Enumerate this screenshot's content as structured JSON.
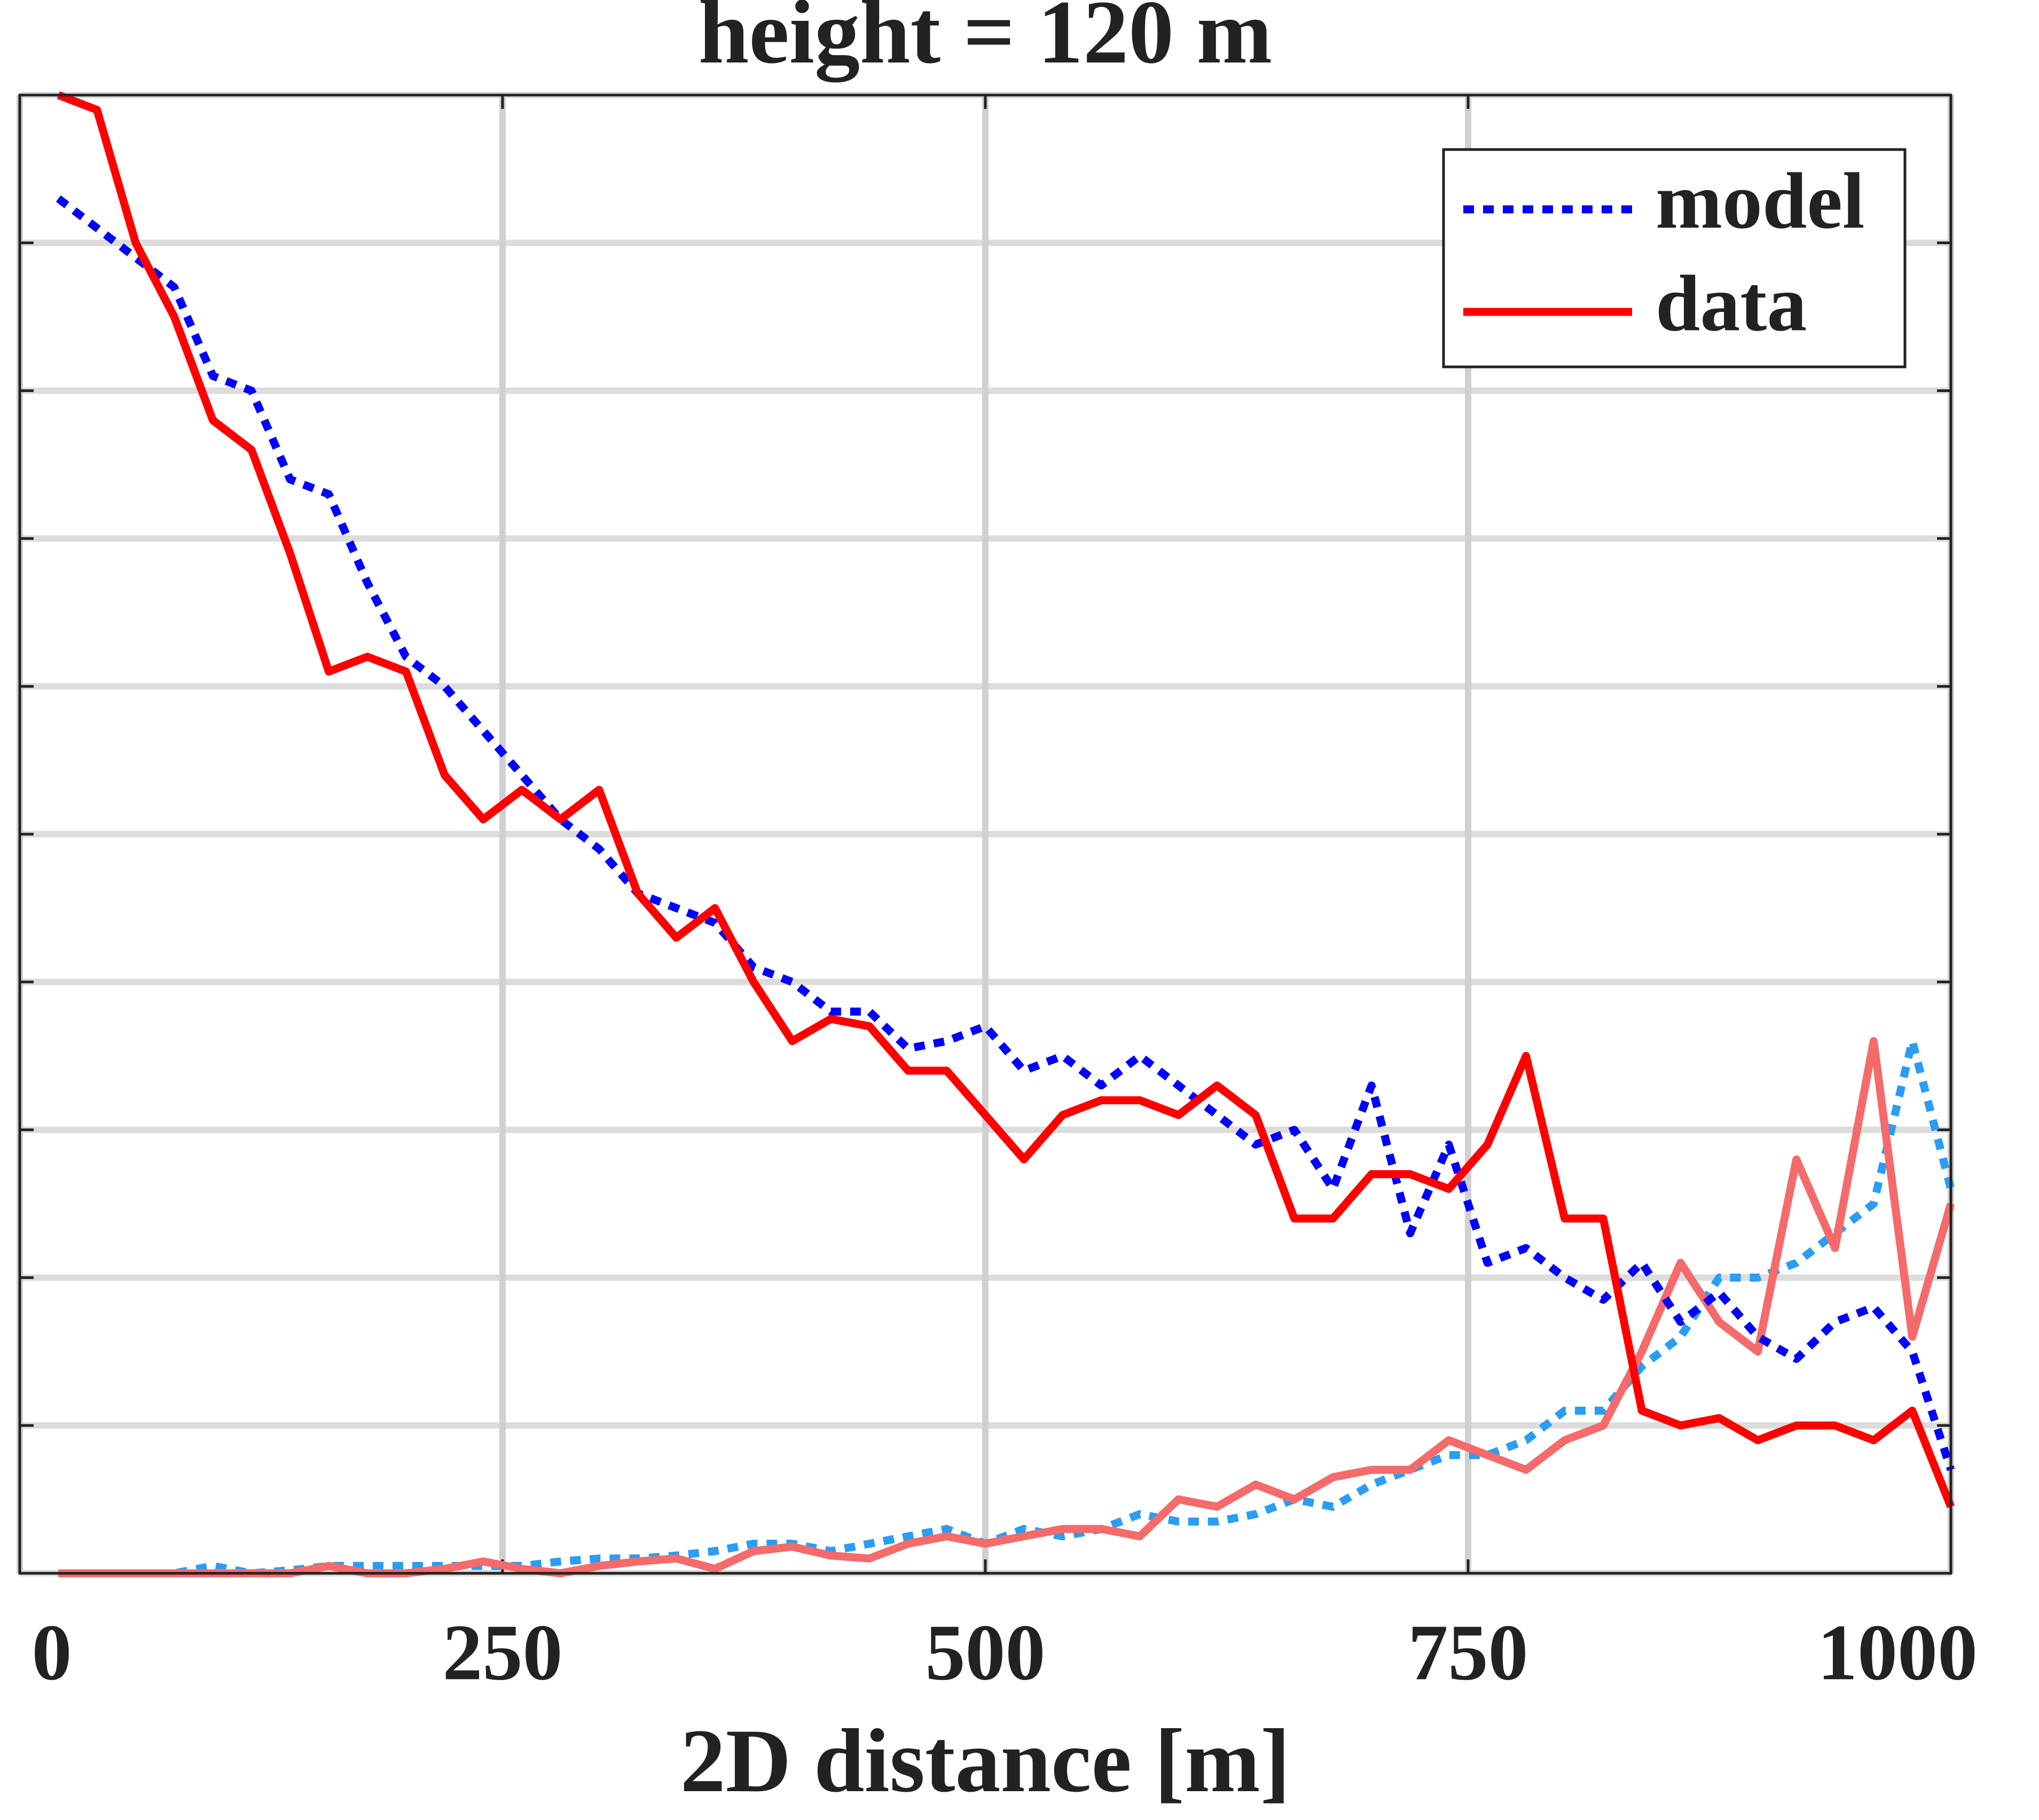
{
  "chart_data": {
    "type": "line",
    "title": "height = 120 m",
    "x_label": "2D distance [m]",
    "x": [
      20,
      40,
      60,
      80,
      100,
      120,
      140,
      160,
      180,
      200,
      220,
      240,
      260,
      280,
      300,
      320,
      340,
      360,
      380,
      400,
      420,
      440,
      460,
      480,
      500,
      520,
      540,
      560,
      580,
      600,
      620,
      640,
      660,
      680,
      700,
      720,
      740,
      760,
      780,
      800,
      820,
      840,
      860,
      880,
      900,
      920,
      940,
      960,
      980,
      1000
    ],
    "series": [
      {
        "name": "model",
        "color": "#0000ff",
        "style": "dotted",
        "values": [
          0.93,
          0.91,
          0.89,
          0.87,
          0.81,
          0.8,
          0.74,
          0.73,
          0.67,
          0.62,
          0.6,
          0.57,
          0.54,
          0.51,
          0.49,
          0.46,
          0.45,
          0.44,
          0.41,
          0.4,
          0.38,
          0.38,
          0.355,
          0.36,
          0.37,
          0.34,
          0.35,
          0.33,
          0.35,
          0.33,
          0.31,
          0.29,
          0.3,
          0.26,
          0.33,
          0.23,
          0.29,
          0.21,
          0.22,
          0.2,
          0.185,
          0.21,
          0.17,
          0.19,
          0.16,
          0.145,
          0.17,
          0.18,
          0.15,
          0.07
        ]
      },
      {
        "name": "data",
        "color": "#ff0000",
        "style": "solid",
        "values": [
          1.0,
          0.99,
          0.9,
          0.85,
          0.78,
          0.76,
          0.69,
          0.61,
          0.62,
          0.61,
          0.54,
          0.51,
          0.53,
          0.51,
          0.53,
          0.46,
          0.43,
          0.45,
          0.4,
          0.36,
          0.375,
          0.37,
          0.34,
          0.34,
          0.31,
          0.28,
          0.31,
          0.32,
          0.32,
          0.31,
          0.33,
          0.31,
          0.24,
          0.24,
          0.27,
          0.27,
          0.26,
          0.29,
          0.35,
          0.24,
          0.24,
          0.11,
          0.1,
          0.105,
          0.09,
          0.1,
          0.1,
          0.09,
          0.11,
          0.045
        ]
      },
      {
        "color": "#2a9df4",
        "style": "dotted",
        "values": [
          0,
          0,
          0,
          0,
          0.005,
          0,
          0.002,
          0.005,
          0.005,
          0.005,
          0.005,
          0.005,
          0.005,
          0.008,
          0.01,
          0.01,
          0.012,
          0.015,
          0.02,
          0.02,
          0.015,
          0.02,
          0.025,
          0.03,
          0.02,
          0.03,
          0.025,
          0.03,
          0.04,
          0.035,
          0.035,
          0.04,
          0.05,
          0.045,
          0.06,
          0.07,
          0.08,
          0.08,
          0.09,
          0.11,
          0.11,
          0.14,
          0.16,
          0.2,
          0.2,
          0.21,
          0.23,
          0.25,
          0.36,
          0.26
        ]
      },
      {
        "color": "#f56a6a",
        "style": "solid",
        "values": [
          0,
          0,
          0,
          0,
          0,
          0,
          0,
          0.005,
          0,
          0,
          0.003,
          0.008,
          0.003,
          0,
          0.005,
          0.008,
          0.01,
          0.003,
          0.015,
          0.018,
          0.012,
          0.01,
          0.02,
          0.025,
          0.02,
          0.025,
          0.03,
          0.03,
          0.025,
          0.05,
          0.045,
          0.06,
          0.05,
          0.065,
          0.07,
          0.07,
          0.09,
          0.08,
          0.07,
          0.09,
          0.1,
          0.15,
          0.21,
          0.17,
          0.15,
          0.28,
          0.22,
          0.36,
          0.16,
          0.25
        ]
      }
    ],
    "xlim": [
      0,
      1000
    ],
    "xticks": [
      0,
      250,
      500,
      750,
      1000
    ],
    "ylim": [
      0,
      1
    ],
    "yticks": [
      0,
      0.1,
      0.2,
      0.3,
      0.4,
      0.5,
      0.6,
      0.7,
      0.8,
      0.9,
      1.0
    ],
    "grid": true,
    "legend": "upper right"
  }
}
